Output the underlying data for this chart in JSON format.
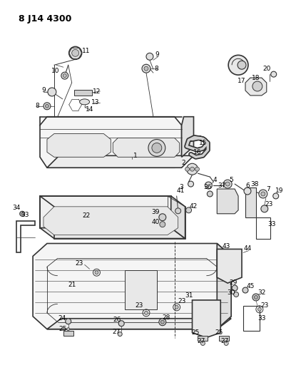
{
  "title": "8 J14 4300",
  "bg_color": "#ffffff",
  "line_color": "#333333",
  "label_color": "#000000",
  "label_fontsize": 6.5,
  "fig_width": 4.02,
  "fig_height": 5.33,
  "dpi": 100
}
